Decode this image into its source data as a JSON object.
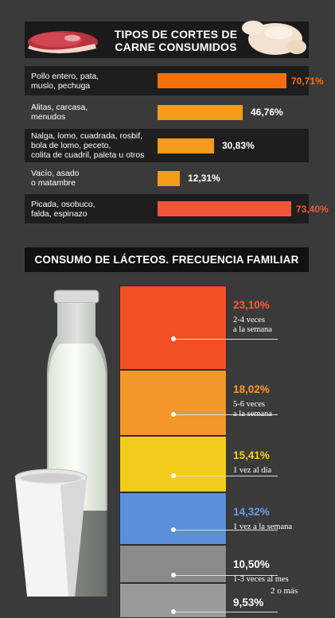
{
  "meat_chart": {
    "title": "TIPOS DE CORTES DE CARNE CONSUMIDOS",
    "title_line1": "TIPOS DE CORTES DE",
    "title_line2": "CARNE CONSUMIDOS",
    "icons": [
      "meat-cut-icon",
      "raw-chicken-icon"
    ]
  },
  "dairy_chart": {
    "title": "CONSUMO DE LÁCTEOS. FRECUENCIA FAMILIAR",
    "icons": [
      "milk-bottle-icon",
      "yogurt-cup-icon"
    ]
  },
  "chart_data": [
    {
      "type": "bar",
      "title": "TIPOS DE CORTES DE CARNE CONSUMIDOS",
      "orientation": "horizontal",
      "categories": [
        "Pollo entero, pata, muslo, pechuga",
        "Alitas, carcasa, menudos",
        "Nalga, lomo, cuadrada, rosbif, bola de lomo, peceto, colita de cuadril, paleta u otros",
        "Vacío, asado o matambre",
        "Picada, osobuco, falda, espinazo"
      ],
      "category_lines": [
        [
          "Pollo entero, pata,",
          "muslo, pechuga"
        ],
        [
          "Alitas, carcasa,",
          "menudos"
        ],
        [
          "Nalga, lomo, cuadrada, rosbif,",
          "bola de lomo, peceto,",
          "colita de cuadril, paleta u otros"
        ],
        [
          "Vacío, asado",
          "o matambre"
        ],
        [
          "Picada, osobuco,",
          "falda, espinazo"
        ]
      ],
      "values": [
        70.71,
        46.76,
        30.83,
        12.31,
        73.4
      ],
      "value_labels": [
        "70,71%",
        "46,76%",
        "30,83%",
        "12,31%",
        "73,40%"
      ],
      "colors": [
        "#f26f0c",
        "#f49b1b",
        "#f49b1b",
        "#f49b1b",
        "#f0553a"
      ],
      "xlim": [
        0,
        100
      ]
    },
    {
      "type": "bar",
      "title": "CONSUMO DE LÁCTEOS. FRECUENCIA FAMILIAR",
      "orientation": "stacked-vertical",
      "categories": [
        "2-4 veces a la semana",
        "5-6 veces a la semana",
        "1 vez al día",
        "1 vez a la semana",
        "1-3 veces al mes",
        "2 o más"
      ],
      "category_lines": [
        [
          "2-4 veces",
          "a la semana"
        ],
        [
          "5-6 veces",
          "a la semana"
        ],
        [
          "1 vez al día"
        ],
        [
          "1 vez a la semana"
        ],
        [
          "1-3 veces al mes"
        ],
        [
          "2 o más"
        ]
      ],
      "values": [
        23.1,
        18.02,
        15.41,
        14.32,
        10.5,
        9.53
      ],
      "value_labels": [
        "23,10%",
        "18,02%",
        "15,41%",
        "14,32%",
        "10,50%",
        "9,53%"
      ],
      "colors": [
        "#f24f26",
        "#f4962a",
        "#f2cc1b",
        "#5b8fdb",
        "#8a8a8a",
        "#9a9a9a"
      ],
      "label_colors": [
        "#ff5a32",
        "#f79a2b",
        "#f6d21c",
        "#6a9be8",
        "#ffffff",
        "#ffffff"
      ]
    }
  ]
}
